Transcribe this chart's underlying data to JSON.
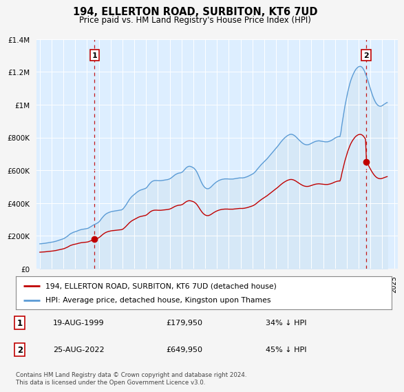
{
  "title": "194, ELLERTON ROAD, SURBITON, KT6 7UD",
  "subtitle": "Price paid vs. HM Land Registry's House Price Index (HPI)",
  "hpi_color": "#5b9bd5",
  "hpi_fill_color": "#d6e8f7",
  "price_color": "#c00000",
  "dashed_color": "#c00000",
  "background_color": "#f5f5f5",
  "plot_bg_color": "#ddeeff",
  "ylim": [
    0,
    1400000
  ],
  "yticks": [
    0,
    200000,
    400000,
    600000,
    800000,
    1000000,
    1200000,
    1400000
  ],
  "ytick_labels": [
    "£0",
    "£200K",
    "£400K",
    "£600K",
    "£800K",
    "£1M",
    "£1.2M",
    "£1.4M"
  ],
  "sale1_date": "19-AUG-1999",
  "sale1_price": 179950,
  "sale1_label": "34% ↓ HPI",
  "sale1_year": 1999.63,
  "sale2_date": "25-AUG-2022",
  "sale2_price": 649950,
  "sale2_label": "45% ↓ HPI",
  "sale2_year": 2022.63,
  "legend_line1": "194, ELLERTON ROAD, SURBITON, KT6 7UD (detached house)",
  "legend_line2": "HPI: Average price, detached house, Kingston upon Thames",
  "footer": "Contains HM Land Registry data © Crown copyright and database right 2024.\nThis data is licensed under the Open Government Licence v3.0.",
  "hpi_data": {
    "years": [
      1995.0,
      1995.083,
      1995.167,
      1995.25,
      1995.333,
      1995.417,
      1995.5,
      1995.583,
      1995.667,
      1995.75,
      1995.833,
      1995.917,
      1996.0,
      1996.083,
      1996.167,
      1996.25,
      1996.333,
      1996.417,
      1996.5,
      1996.583,
      1996.667,
      1996.75,
      1996.833,
      1996.917,
      1997.0,
      1997.083,
      1997.167,
      1997.25,
      1997.333,
      1997.417,
      1997.5,
      1997.583,
      1997.667,
      1997.75,
      1997.833,
      1997.917,
      1998.0,
      1998.083,
      1998.167,
      1998.25,
      1998.333,
      1998.417,
      1998.5,
      1998.583,
      1998.667,
      1998.75,
      1998.833,
      1998.917,
      1999.0,
      1999.083,
      1999.167,
      1999.25,
      1999.333,
      1999.417,
      1999.5,
      1999.583,
      1999.667,
      1999.75,
      1999.833,
      1999.917,
      2000.0,
      2000.083,
      2000.167,
      2000.25,
      2000.333,
      2000.417,
      2000.5,
      2000.583,
      2000.667,
      2000.75,
      2000.833,
      2000.917,
      2001.0,
      2001.083,
      2001.167,
      2001.25,
      2001.333,
      2001.417,
      2001.5,
      2001.583,
      2001.667,
      2001.75,
      2001.833,
      2001.917,
      2002.0,
      2002.083,
      2002.167,
      2002.25,
      2002.333,
      2002.417,
      2002.5,
      2002.583,
      2002.667,
      2002.75,
      2002.833,
      2002.917,
      2003.0,
      2003.083,
      2003.167,
      2003.25,
      2003.333,
      2003.417,
      2003.5,
      2003.583,
      2003.667,
      2003.75,
      2003.833,
      2003.917,
      2004.0,
      2004.083,
      2004.167,
      2004.25,
      2004.333,
      2004.417,
      2004.5,
      2004.583,
      2004.667,
      2004.75,
      2004.833,
      2004.917,
      2005.0,
      2005.083,
      2005.167,
      2005.25,
      2005.333,
      2005.417,
      2005.5,
      2005.583,
      2005.667,
      2005.75,
      2005.833,
      2005.917,
      2006.0,
      2006.083,
      2006.167,
      2006.25,
      2006.333,
      2006.417,
      2006.5,
      2006.583,
      2006.667,
      2006.75,
      2006.833,
      2006.917,
      2007.0,
      2007.083,
      2007.167,
      2007.25,
      2007.333,
      2007.417,
      2007.5,
      2007.583,
      2007.667,
      2007.75,
      2007.833,
      2007.917,
      2008.0,
      2008.083,
      2008.167,
      2008.25,
      2008.333,
      2008.417,
      2008.5,
      2008.583,
      2008.667,
      2008.75,
      2008.833,
      2008.917,
      2009.0,
      2009.083,
      2009.167,
      2009.25,
      2009.333,
      2009.417,
      2009.5,
      2009.583,
      2009.667,
      2009.75,
      2009.833,
      2009.917,
      2010.0,
      2010.083,
      2010.167,
      2010.25,
      2010.333,
      2010.417,
      2010.5,
      2010.583,
      2010.667,
      2010.75,
      2010.833,
      2010.917,
      2011.0,
      2011.083,
      2011.167,
      2011.25,
      2011.333,
      2011.417,
      2011.5,
      2011.583,
      2011.667,
      2011.75,
      2011.833,
      2011.917,
      2012.0,
      2012.083,
      2012.167,
      2012.25,
      2012.333,
      2012.417,
      2012.5,
      2012.583,
      2012.667,
      2012.75,
      2012.833,
      2012.917,
      2013.0,
      2013.083,
      2013.167,
      2013.25,
      2013.333,
      2013.417,
      2013.5,
      2013.583,
      2013.667,
      2013.75,
      2013.833,
      2013.917,
      2014.0,
      2014.083,
      2014.167,
      2014.25,
      2014.333,
      2014.417,
      2014.5,
      2014.583,
      2014.667,
      2014.75,
      2014.833,
      2014.917,
      2015.0,
      2015.083,
      2015.167,
      2015.25,
      2015.333,
      2015.417,
      2015.5,
      2015.583,
      2015.667,
      2015.75,
      2015.833,
      2015.917,
      2016.0,
      2016.083,
      2016.167,
      2016.25,
      2016.333,
      2016.417,
      2016.5,
      2016.583,
      2016.667,
      2016.75,
      2016.833,
      2016.917,
      2017.0,
      2017.083,
      2017.167,
      2017.25,
      2017.333,
      2017.417,
      2017.5,
      2017.583,
      2017.667,
      2017.75,
      2017.833,
      2017.917,
      2018.0,
      2018.083,
      2018.167,
      2018.25,
      2018.333,
      2018.417,
      2018.5,
      2018.583,
      2018.667,
      2018.75,
      2018.833,
      2018.917,
      2019.0,
      2019.083,
      2019.167,
      2019.25,
      2019.333,
      2019.417,
      2019.5,
      2019.583,
      2019.667,
      2019.75,
      2019.833,
      2019.917,
      2020.0,
      2020.083,
      2020.167,
      2020.25,
      2020.333,
      2020.417,
      2020.5,
      2020.583,
      2020.667,
      2020.75,
      2020.833,
      2020.917,
      2021.0,
      2021.083,
      2021.167,
      2021.25,
      2021.333,
      2021.417,
      2021.5,
      2021.583,
      2021.667,
      2021.75,
      2021.833,
      2021.917,
      2022.0,
      2022.083,
      2022.167,
      2022.25,
      2022.333,
      2022.417,
      2022.5,
      2022.583,
      2022.667,
      2022.75,
      2022.833,
      2022.917,
      2023.0,
      2023.083,
      2023.167,
      2023.25,
      2023.333,
      2023.417,
      2023.5,
      2023.583,
      2023.667,
      2023.75,
      2023.833,
      2023.917,
      2024.0,
      2024.083,
      2024.167,
      2024.25,
      2024.333,
      2024.417
    ],
    "values": [
      152000,
      152500,
      153000,
      154000,
      154500,
      155000,
      156000,
      157000,
      158000,
      159000,
      160000,
      161000,
      162000,
      163000,
      164000,
      166000,
      167000,
      169000,
      171000,
      173000,
      175000,
      177000,
      179000,
      181000,
      183000,
      186000,
      190000,
      194000,
      198000,
      203000,
      208000,
      213000,
      216000,
      219000,
      222000,
      224000,
      226000,
      228000,
      230000,
      233000,
      235000,
      237000,
      239000,
      240000,
      241000,
      242000,
      243000,
      244000,
      245000,
      247000,
      250000,
      254000,
      257000,
      261000,
      265000,
      268000,
      271000,
      274000,
      277000,
      281000,
      285000,
      292000,
      300000,
      308000,
      315000,
      322000,
      328000,
      333000,
      337000,
      340000,
      343000,
      345000,
      347000,
      349000,
      350000,
      351000,
      352000,
      353000,
      354000,
      355000,
      356000,
      357000,
      358000,
      359000,
      362000,
      368000,
      376000,
      384000,
      393000,
      403000,
      413000,
      422000,
      430000,
      437000,
      443000,
      448000,
      453000,
      458000,
      463000,
      468000,
      472000,
      476000,
      479000,
      481000,
      483000,
      485000,
      487000,
      489000,
      492000,
      498000,
      506000,
      514000,
      521000,
      527000,
      532000,
      535000,
      537000,
      538000,
      538000,
      538000,
      537000,
      537000,
      537000,
      537000,
      538000,
      539000,
      540000,
      541000,
      542000,
      543000,
      544000,
      546000,
      548000,
      552000,
      556000,
      561000,
      566000,
      571000,
      575000,
      578000,
      581000,
      583000,
      584000,
      585000,
      587000,
      591000,
      597000,
      604000,
      611000,
      617000,
      621000,
      624000,
      625000,
      624000,
      622000,
      619000,
      616000,
      611000,
      604000,
      596000,
      585000,
      572000,
      558000,
      543000,
      530000,
      518000,
      508000,
      500000,
      494000,
      490000,
      488000,
      488000,
      490000,
      494000,
      499000,
      505000,
      511000,
      517000,
      522000,
      527000,
      531000,
      535000,
      538000,
      541000,
      543000,
      545000,
      546000,
      547000,
      548000,
      548000,
      548000,
      548000,
      547000,
      547000,
      547000,
      547000,
      547000,
      548000,
      549000,
      550000,
      551000,
      552000,
      553000,
      554000,
      554000,
      554000,
      554000,
      555000,
      556000,
      558000,
      560000,
      562000,
      565000,
      568000,
      571000,
      574000,
      577000,
      581000,
      586000,
      592000,
      599000,
      607000,
      614000,
      621000,
      628000,
      635000,
      641000,
      647000,
      653000,
      659000,
      665000,
      671000,
      678000,
      685000,
      692000,
      699000,
      706000,
      713000,
      720000,
      727000,
      734000,
      741000,
      749000,
      757000,
      765000,
      773000,
      780000,
      787000,
      793000,
      799000,
      804000,
      809000,
      813000,
      816000,
      819000,
      820000,
      820000,
      818000,
      815000,
      811000,
      806000,
      800000,
      794000,
      788000,
      782000,
      776000,
      771000,
      766000,
      762000,
      759000,
      757000,
      756000,
      756000,
      757000,
      759000,
      762000,
      765000,
      768000,
      771000,
      774000,
      776000,
      778000,
      779000,
      780000,
      780000,
      779000,
      778000,
      777000,
      776000,
      775000,
      774000,
      774000,
      774000,
      775000,
      777000,
      779000,
      782000,
      785000,
      789000,
      793000,
      797000,
      800000,
      803000,
      805000,
      806000,
      806000,
      833000,
      878000,
      916000,
      955000,
      990000,
      1020000,
      1050000,
      1080000,
      1105000,
      1128000,
      1148000,
      1165000,
      1180000,
      1193000,
      1205000,
      1215000,
      1222000,
      1228000,
      1232000,
      1234000,
      1234000,
      1231000,
      1225000,
      1216000,
      1204000,
      1189000,
      1173000,
      1155000,
      1136000,
      1116000,
      1096000,
      1077000,
      1059000,
      1043000,
      1029000,
      1017000,
      1007000,
      1000000,
      995000,
      992000,
      991000,
      992000,
      995000,
      999000,
      1003000,
      1007000,
      1011000,
      1014000
    ]
  },
  "price_data": {
    "years": [
      1999.63,
      2022.63
    ],
    "values": [
      179950,
      649950
    ]
  }
}
